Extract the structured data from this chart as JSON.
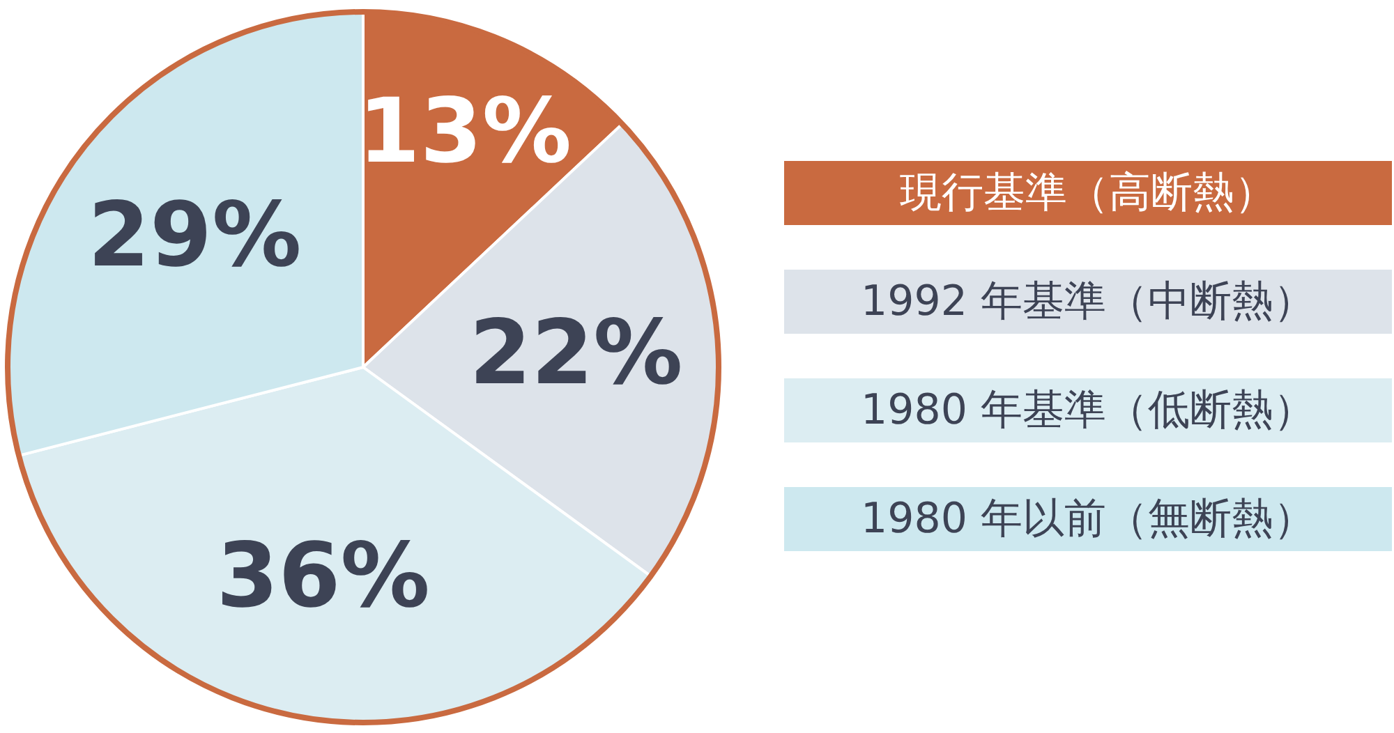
{
  "chart_data": {
    "type": "pie",
    "categories": [
      "現行基準（高断熱）",
      "1992 年基準（中断熱）",
      "1980 年基準（低断熱）",
      "1980 年以前（無断熱）"
    ],
    "values": [
      13,
      22,
      36,
      29
    ],
    "colors": [
      "#c96a40",
      "#dde3ea",
      "#dcedf2",
      "#cde8ef"
    ],
    "value_labels": [
      "13%",
      "22%",
      "36%",
      "29%"
    ],
    "legend": "right"
  }
}
